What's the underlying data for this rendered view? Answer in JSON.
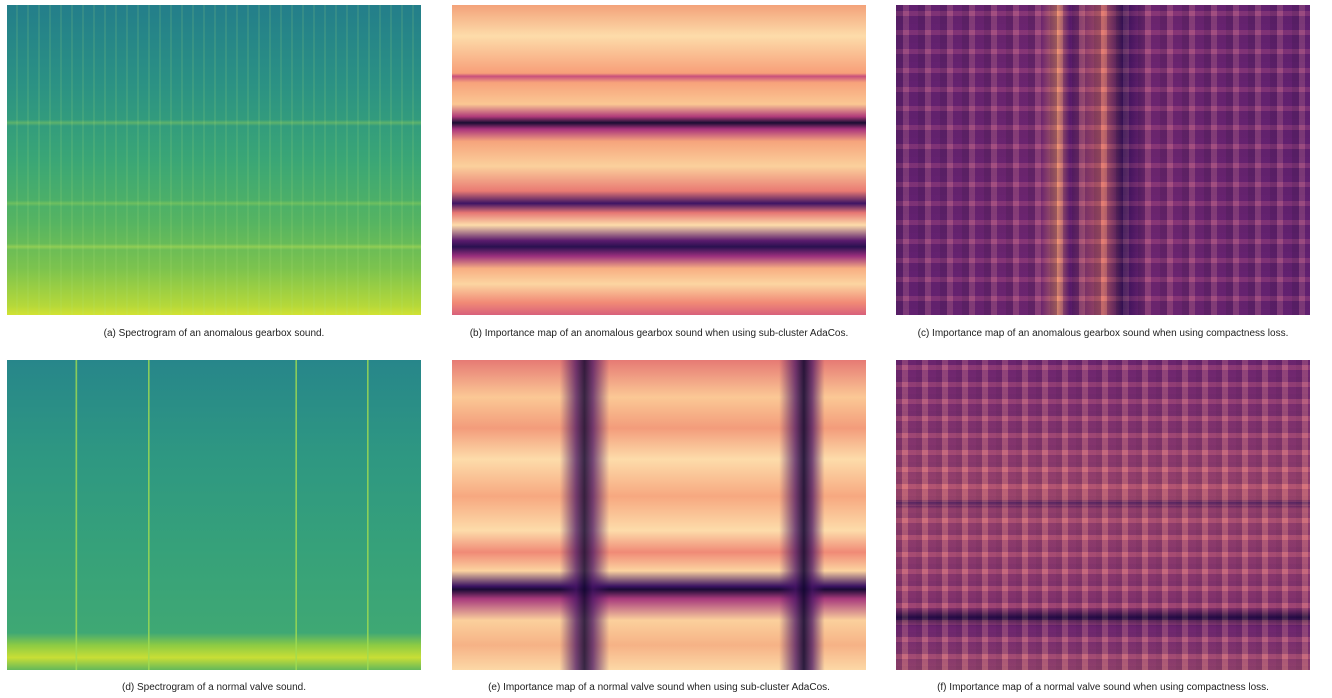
{
  "figure": {
    "panels": [
      {
        "caption": "(a) Spectrogram of an anomalous gearbox sound."
      },
      {
        "caption": "(b) Importance map of an anomalous gearbox sound when using sub-cluster AdaCos."
      },
      {
        "caption": "(c) Importance map of an anomalous gearbox sound when using compactness loss."
      },
      {
        "caption": "(d) Spectrogram of a normal valve sound."
      },
      {
        "caption": "(e) Importance map of a normal valve sound when using sub-cluster AdaCos."
      },
      {
        "caption": "(f) Importance map of a normal valve sound when using compactness loss."
      }
    ]
  }
}
